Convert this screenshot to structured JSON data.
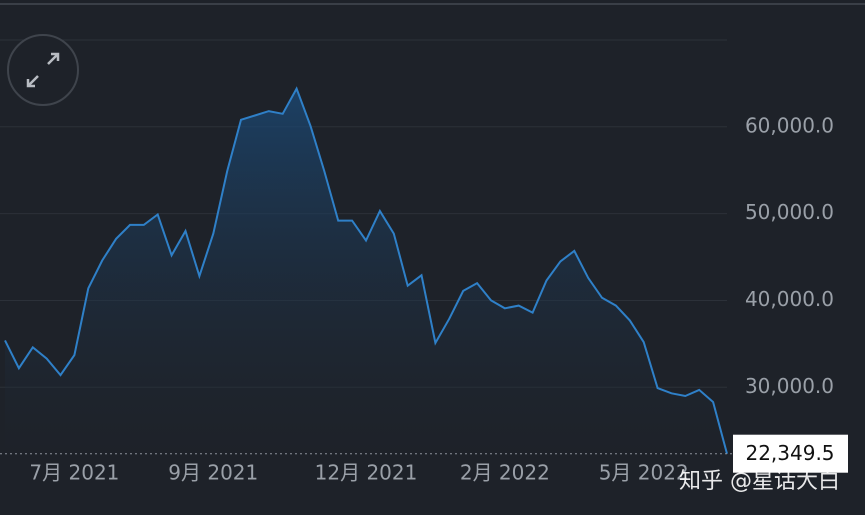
{
  "chart_data": {
    "type": "area",
    "categories": [
      null,
      null,
      null,
      null,
      null,
      "7月 2021",
      null,
      null,
      null,
      null,
      null,
      null,
      null,
      null,
      null,
      "9月 2021",
      null,
      null,
      null,
      null,
      null,
      null,
      null,
      null,
      null,
      null,
      "12月 2021",
      null,
      null,
      null,
      null,
      null,
      null,
      null,
      null,
      null,
      "2月 2022",
      null,
      null,
      null,
      null,
      null,
      null,
      null,
      null,
      null,
      "5月 2022",
      null,
      null,
      null,
      null,
      null,
      null
    ],
    "values": [
      35400,
      32200,
      34600,
      33300,
      31400,
      33700,
      41400,
      44600,
      47100,
      48700,
      48700,
      49900,
      45200,
      48000,
      42800,
      47700,
      54900,
      60800,
      61300,
      61800,
      61500,
      64400,
      60100,
      54900,
      49200,
      49200,
      46900,
      50300,
      47700,
      41700,
      42900,
      35100,
      37900,
      41100,
      42000,
      40000,
      39100,
      39400,
      38600,
      42300,
      44500,
      45700,
      42600,
      40300,
      39400,
      37700,
      35200,
      29900,
      29300,
      29000,
      29700,
      28300,
      22349.5
    ],
    "value_labels": [
      null,
      null,
      null,
      null,
      null,
      null,
      null,
      null,
      null,
      null,
      null,
      null,
      null,
      null,
      null,
      null,
      null,
      null,
      null,
      null,
      null,
      null,
      null,
      null,
      null,
      null,
      null,
      null,
      null,
      null,
      null,
      null,
      null,
      null,
      null,
      null,
      null,
      null,
      null,
      null,
      null,
      null,
      null,
      null,
      null,
      null,
      null,
      null,
      null,
      null,
      null,
      null,
      "22,349.5"
    ],
    "color": "#2f80c8",
    "ylim": [
      22200,
      74600
    ],
    "yticks": [
      {
        "value": 30000,
        "label": "30,000.0"
      },
      {
        "value": 40000,
        "label": "40,000.0"
      },
      {
        "value": 50000,
        "label": "50,000.0"
      },
      {
        "value": 60000,
        "label": "60,000.0"
      }
    ],
    "grid": true
  },
  "watermark": "知乎 @星话大白"
}
